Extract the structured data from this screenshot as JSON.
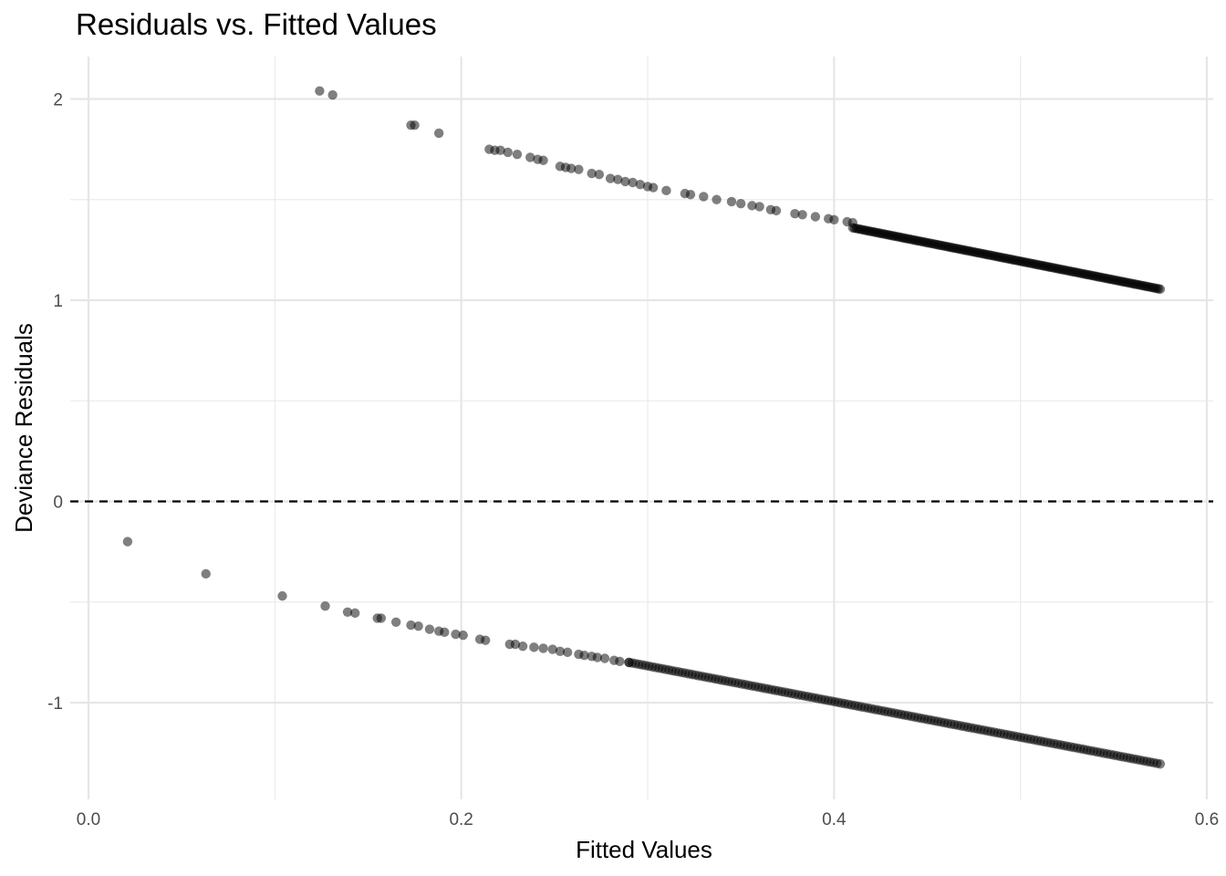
{
  "chart_data": {
    "type": "scatter",
    "title": "Residuals vs. Fitted Values",
    "xlabel": "Fitted Values",
    "ylabel": "Deviance Residuals",
    "xlim": [
      -0.005,
      0.6
    ],
    "ylim": [
      -1.47,
      2.2
    ],
    "x_ticks": [
      0.0,
      0.2,
      0.4,
      0.6
    ],
    "x_tick_labels": [
      "0.0",
      "0.2",
      "0.4",
      "0.6"
    ],
    "y_ticks": [
      -1,
      0,
      1,
      2
    ],
    "y_tick_labels": [
      "-1",
      "0",
      "1",
      "2"
    ],
    "grid": true,
    "reference_line": {
      "y": 0,
      "style": "dashed",
      "color": "#000000"
    },
    "point_color": "#000000",
    "point_opacity": 0.5,
    "series": [
      {
        "group": "observed-1",
        "points": [
          [
            0.124,
            2.04
          ],
          [
            0.131,
            2.02
          ],
          [
            0.173,
            1.87
          ],
          [
            0.175,
            1.87
          ],
          [
            0.188,
            1.83
          ],
          [
            0.215,
            1.75
          ],
          [
            0.218,
            1.745
          ],
          [
            0.221,
            1.745
          ],
          [
            0.225,
            1.735
          ],
          [
            0.23,
            1.725
          ],
          [
            0.237,
            1.71
          ],
          [
            0.241,
            1.7
          ],
          [
            0.244,
            1.695
          ],
          [
            0.253,
            1.665
          ],
          [
            0.256,
            1.66
          ],
          [
            0.259,
            1.655
          ],
          [
            0.263,
            1.65
          ],
          [
            0.27,
            1.63
          ],
          [
            0.274,
            1.625
          ],
          [
            0.28,
            1.605
          ],
          [
            0.284,
            1.6
          ],
          [
            0.288,
            1.59
          ],
          [
            0.292,
            1.585
          ],
          [
            0.296,
            1.575
          ],
          [
            0.3,
            1.565
          ],
          [
            0.303,
            1.56
          ],
          [
            0.31,
            1.545
          ],
          [
            0.32,
            1.53
          ],
          [
            0.323,
            1.525
          ],
          [
            0.33,
            1.515
          ],
          [
            0.337,
            1.5
          ],
          [
            0.345,
            1.49
          ],
          [
            0.35,
            1.48
          ],
          [
            0.356,
            1.47
          ],
          [
            0.36,
            1.465
          ],
          [
            0.366,
            1.45
          ],
          [
            0.369,
            1.445
          ],
          [
            0.379,
            1.43
          ],
          [
            0.383,
            1.425
          ],
          [
            0.39,
            1.415
          ],
          [
            0.397,
            1.405
          ],
          [
            0.4,
            1.4
          ],
          [
            0.407,
            1.39
          ],
          [
            0.41,
            1.385
          ]
        ],
        "dense_segment": {
          "x_start": 0.41,
          "x_end": 0.575,
          "y_start": 1.36,
          "y_end": 1.055
        }
      },
      {
        "group": "observed-0",
        "points": [
          [
            0.021,
            -0.2
          ],
          [
            0.063,
            -0.36
          ],
          [
            0.104,
            -0.47
          ],
          [
            0.127,
            -0.52
          ],
          [
            0.139,
            -0.55
          ],
          [
            0.143,
            -0.555
          ],
          [
            0.155,
            -0.58
          ],
          [
            0.157,
            -0.58
          ],
          [
            0.165,
            -0.6
          ],
          [
            0.173,
            -0.615
          ],
          [
            0.177,
            -0.62
          ],
          [
            0.183,
            -0.635
          ],
          [
            0.188,
            -0.645
          ],
          [
            0.191,
            -0.65
          ],
          [
            0.197,
            -0.66
          ],
          [
            0.201,
            -0.665
          ],
          [
            0.21,
            -0.685
          ],
          [
            0.213,
            -0.69
          ],
          [
            0.226,
            -0.71
          ],
          [
            0.229,
            -0.71
          ],
          [
            0.233,
            -0.72
          ],
          [
            0.239,
            -0.725
          ],
          [
            0.244,
            -0.73
          ],
          [
            0.249,
            -0.735
          ],
          [
            0.253,
            -0.745
          ],
          [
            0.257,
            -0.75
          ],
          [
            0.263,
            -0.76
          ],
          [
            0.266,
            -0.765
          ],
          [
            0.27,
            -0.77
          ],
          [
            0.273,
            -0.775
          ],
          [
            0.277,
            -0.78
          ],
          [
            0.282,
            -0.79
          ],
          [
            0.285,
            -0.795
          ],
          [
            0.29,
            -0.8
          ]
        ],
        "dense_segment": {
          "x_start": 0.29,
          "x_end": 0.575,
          "y_start": -0.8,
          "y_end": -1.305
        }
      }
    ]
  }
}
